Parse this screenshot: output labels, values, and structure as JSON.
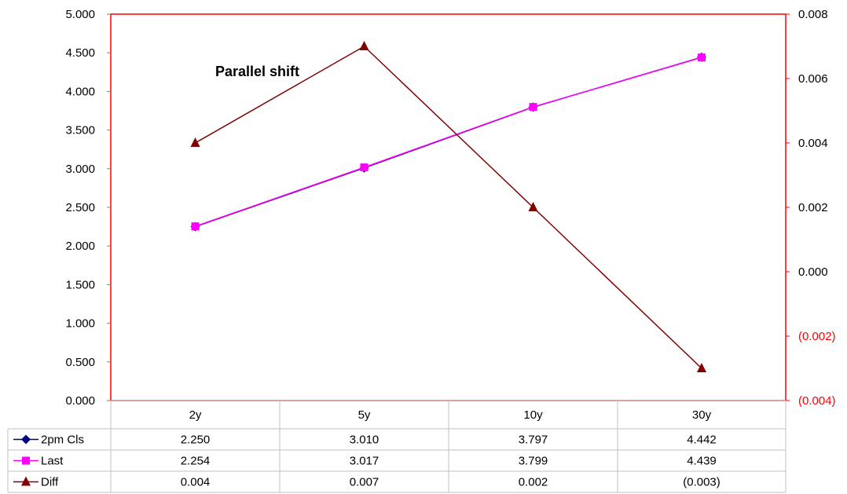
{
  "chart_data": {
    "type": "line",
    "title": "Parallel shift",
    "categories": [
      "2y",
      "5y",
      "10y",
      "30y"
    ],
    "left_axis": {
      "min": 0,
      "max": 5,
      "step": 0.5,
      "tick_labels": [
        "0.000",
        "0.500",
        "1.000",
        "1.500",
        "2.000",
        "2.500",
        "3.000",
        "3.500",
        "4.000",
        "4.500",
        "5.000"
      ]
    },
    "right_axis": {
      "min": -0.004,
      "max": 0.008,
      "step": 0.002,
      "tick_labels": [
        "(0.004)",
        "(0.002)",
        "0.000",
        "0.002",
        "0.004",
        "0.006",
        "0.008"
      ],
      "negative_color": "#ff0000",
      "positive_color": "#000000"
    },
    "series": [
      {
        "name": "2pm Cls",
        "axis": "left",
        "values": [
          2.25,
          3.01,
          3.797,
          4.442
        ],
        "display": [
          "2.250",
          "3.010",
          "3.797",
          "4.442"
        ],
        "color": "#000080",
        "marker": "diamond"
      },
      {
        "name": "Last",
        "axis": "left",
        "values": [
          2.254,
          3.017,
          3.799,
          4.439
        ],
        "display": [
          "2.254",
          "3.017",
          "3.799",
          "4.439"
        ],
        "color": "#ff00ff",
        "marker": "square"
      },
      {
        "name": "Diff",
        "axis": "right",
        "values": [
          0.004,
          0.007,
          0.002,
          -0.003
        ],
        "display": [
          "0.004",
          "0.007",
          "0.002",
          "(0.003)"
        ],
        "color": "#800000",
        "marker": "triangle"
      }
    ],
    "plot_border_color": "#ff0000",
    "grid": false,
    "legend": "data-table-rows"
  }
}
